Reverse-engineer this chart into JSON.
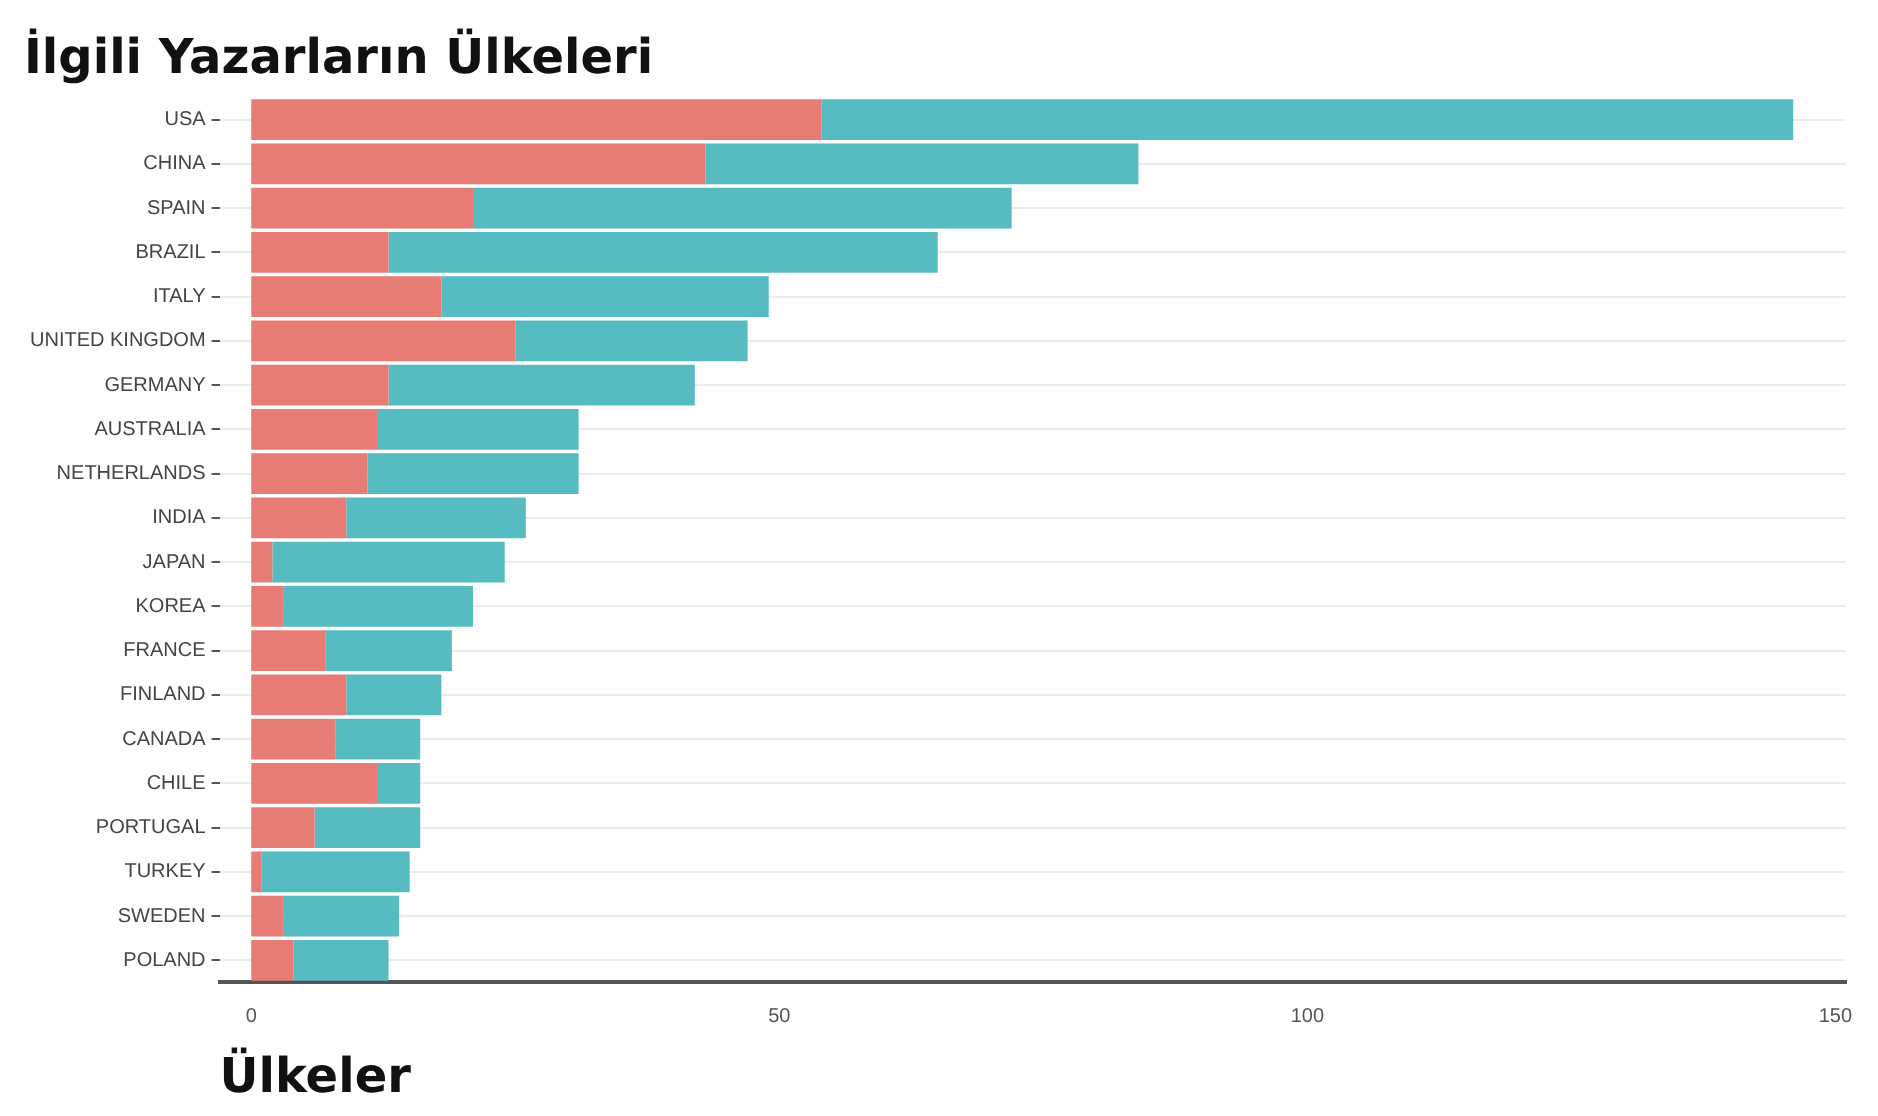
{
  "chart_data": {
    "type": "bar",
    "orientation": "horizontal",
    "stacked": true,
    "title": "İlgili Yazarların Ülkeleri",
    "xlabel": "Ülkeler",
    "categories": [
      "USA",
      "CHINA",
      "SPAIN",
      "BRAZIL",
      "ITALY",
      "UNITED KINGDOM",
      "GERMANY",
      "AUSTRALIA",
      "NETHERLANDS",
      "INDIA",
      "JAPAN",
      "KOREA",
      "FRANCE",
      "FINLAND",
      "CANADA",
      "CHILE",
      "PORTUGAL",
      "TURKEY",
      "SWEDEN",
      "POLAND"
    ],
    "series": [
      {
        "color": "#e67c73",
        "values": [
          54,
          43,
          21,
          13,
          18,
          25,
          13,
          12,
          11,
          9,
          2,
          3,
          7,
          9,
          8,
          12,
          6,
          1,
          3,
          4
        ]
      },
      {
        "color": "#56bcc2",
        "values": [
          92,
          41,
          51,
          52,
          31,
          22,
          29,
          19,
          20,
          17,
          22,
          18,
          12,
          9,
          8,
          4,
          10,
          14,
          11,
          9
        ]
      }
    ],
    "xlim": [
      -3,
      151
    ],
    "xticks": [
      0,
      50,
      100,
      150
    ],
    "grid": "y",
    "legend": false
  }
}
